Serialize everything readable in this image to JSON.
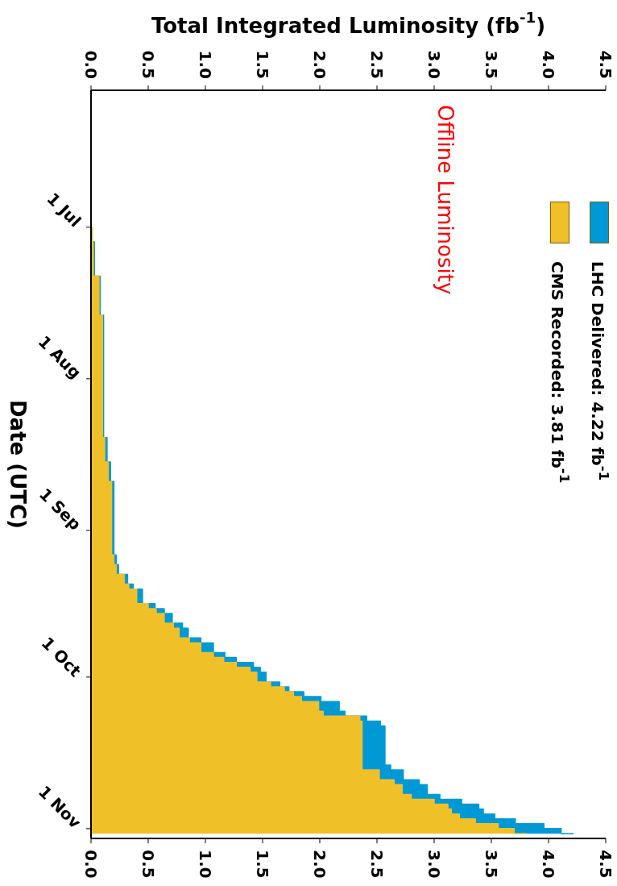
{
  "chart_data": {
    "type": "area",
    "orientation": "horizontal",
    "ylabel": "Date (UTC)",
    "x2label": "Total Integrated Luminosity (fb$^{-1}$)",
    "x": [
      "--06-12",
      "--07-01",
      "--07-04",
      "--07-11",
      "--07-19",
      "--08-13",
      "--08-18",
      "--08-22",
      "--09-06",
      "--09-08",
      "--09-10",
      "--09-12",
      "--09-13",
      "--09-16",
      "--09-17",
      "--09-18",
      "--09-20",
      "--09-21",
      "--09-23",
      "--09-24",
      "--09-26",
      "--09-27",
      "--09-28",
      "--09-29",
      "--09-30",
      "--10-02",
      "--10-03",
      "--10-04",
      "--10-05",
      "--10-06",
      "--10-08",
      "--10-09",
      "--10-10",
      "--10-11",
      "--10-19",
      "--10-20",
      "--10-22",
      "--10-23",
      "--10-25",
      "--10-26",
      "--10-27",
      "--10-28",
      "--10-29",
      "--10-30",
      "--10-31",
      "--11-01",
      "--11-02"
    ],
    "series": [
      {
        "name": "LHC Delivered: 4.22 fb$^{-1}$",
        "color": "#0099d6",
        "values": [
          0,
          0.01,
          0.03,
          0.08,
          0.11,
          0.14,
          0.17,
          0.2,
          0.22,
          0.24,
          0.32,
          0.37,
          0.45,
          0.56,
          0.64,
          0.71,
          0.8,
          0.85,
          0.96,
          1.07,
          1.17,
          1.27,
          1.42,
          1.48,
          1.53,
          1.65,
          1.73,
          1.86,
          2.01,
          2.17,
          2.22,
          2.41,
          2.53,
          2.57,
          2.62,
          2.73,
          2.87,
          2.94,
          3.05,
          3.24,
          3.39,
          3.43,
          3.53,
          3.71,
          3.96,
          4.11,
          4.22
        ]
      },
      {
        "name": "CMS Recorded: 3.81 fb$^{-1}$",
        "color": "#f0c028",
        "values": [
          0,
          0.01,
          0.02,
          0.07,
          0.1,
          0.12,
          0.15,
          0.18,
          0.2,
          0.22,
          0.29,
          0.33,
          0.4,
          0.5,
          0.57,
          0.64,
          0.72,
          0.77,
          0.86,
          0.96,
          1.07,
          1.16,
          1.27,
          1.39,
          1.45,
          1.57,
          1.69,
          1.77,
          1.84,
          1.99,
          2.03,
          2.35,
          2.37,
          2.37,
          2.37,
          2.52,
          2.65,
          2.72,
          2.8,
          3.0,
          3.12,
          3.15,
          3.22,
          3.36,
          3.56,
          3.7,
          3.81
        ]
      }
    ],
    "ylim": [
      "--11-03",
      "--06-03"
    ],
    "yticks": [
      {
        "value": "--07-01",
        "label": "1 Jul"
      },
      {
        "value": "--08-01",
        "label": "1 Aug"
      },
      {
        "value": "--09-01",
        "label": "1 Sep"
      },
      {
        "value": "--10-01",
        "label": "1 Oct"
      },
      {
        "value": "--11-01",
        "label": "1 Nov"
      }
    ],
    "xlim": [
      0,
      4.5
    ],
    "xticks": [
      {
        "value": 0,
        "label": "0.0"
      },
      {
        "value": 0.5,
        "label": "0.5"
      },
      {
        "value": 1,
        "label": "1.0"
      },
      {
        "value": 1.5,
        "label": "1.5"
      },
      {
        "value": 2,
        "label": "2.0"
      },
      {
        "value": 2.5,
        "label": "2.5"
      },
      {
        "value": 3,
        "label": "3.0"
      },
      {
        "value": 3.5,
        "label": "3.5"
      },
      {
        "value": 4,
        "label": "4.0"
      },
      {
        "value": 4.5,
        "label": "4.5"
      }
    ],
    "x2lim": [
      0,
      4.5
    ],
    "x2ticks": [
      {
        "value": 0,
        "label": "0.0"
      },
      {
        "value": 0.5,
        "label": "0.5"
      },
      {
        "value": 1,
        "label": "1.0"
      },
      {
        "value": 1.5,
        "label": "1.5"
      },
      {
        "value": 2,
        "label": "2.0"
      },
      {
        "value": 2.5,
        "label": "2.5"
      },
      {
        "value": 3,
        "label": "3.0"
      },
      {
        "value": 3.5,
        "label": "3.5"
      },
      {
        "value": 4,
        "label": "4.0"
      },
      {
        "value": 4.5,
        "label": "4.5"
      }
    ],
    "annotations": [
      "Offline Luminosity"
    ],
    "legend": "top right",
    "grid": false,
    "marker": "none"
  }
}
